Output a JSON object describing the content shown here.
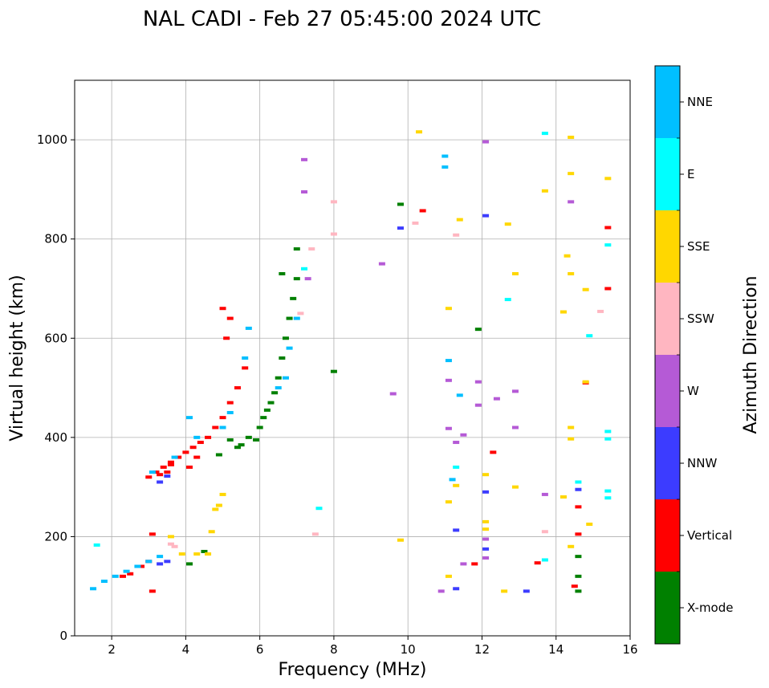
{
  "title": "NAL CADI - Feb 27 05:45:00 2024 UTC",
  "chart_data": {
    "type": "scatter",
    "title": "NAL CADI - Feb 27 05:45:00 2024 UTC",
    "xlabel": "Frequency (MHz)",
    "ylabel": "Virtual height (km)",
    "xlim": [
      1,
      16
    ],
    "ylim": [
      0,
      1120
    ],
    "xticks": [
      2,
      4,
      6,
      8,
      10,
      12,
      14,
      16
    ],
    "yticks": [
      0,
      200,
      400,
      600,
      800,
      1000
    ],
    "grid": true,
    "colorbar": {
      "label": "Azimuth Direction",
      "categories": [
        {
          "name": "X-mode",
          "color": "#008000"
        },
        {
          "name": "Vertical",
          "color": "#ff0000"
        },
        {
          "name": "NNW",
          "color": "#3c3cff"
        },
        {
          "name": "W",
          "color": "#b55ad6"
        },
        {
          "name": "SSW",
          "color": "#ffb6c1"
        },
        {
          "name": "SSE",
          "color": "#ffd700"
        },
        {
          "name": "E",
          "color": "#00ffff"
        },
        {
          "name": "NNE",
          "color": "#00bfff"
        }
      ]
    },
    "series": [
      {
        "name": "X-mode",
        "points": [
          [
            4.1,
            145
          ],
          [
            4.5,
            170
          ],
          [
            5.5,
            385
          ],
          [
            5.7,
            400
          ],
          [
            5.9,
            395
          ],
          [
            6.0,
            420
          ],
          [
            6.1,
            440
          ],
          [
            6.2,
            455
          ],
          [
            6.3,
            470
          ],
          [
            6.4,
            490
          ],
          [
            6.5,
            520
          ],
          [
            6.6,
            560
          ],
          [
            6.7,
            600
          ],
          [
            6.8,
            640
          ],
          [
            6.9,
            680
          ],
          [
            7.0,
            720
          ],
          [
            7.0,
            780
          ],
          [
            6.6,
            730
          ],
          [
            5.4,
            380
          ],
          [
            5.2,
            395
          ],
          [
            4.9,
            365
          ],
          [
            8.0,
            533
          ],
          [
            9.8,
            870
          ],
          [
            11.9,
            618
          ],
          [
            14.6,
            90
          ],
          [
            14.6,
            120
          ],
          [
            14.6,
            160
          ]
        ]
      },
      {
        "name": "Vertical",
        "points": [
          [
            3.0,
            320
          ],
          [
            3.2,
            330
          ],
          [
            3.4,
            340
          ],
          [
            3.6,
            350
          ],
          [
            3.8,
            360
          ],
          [
            4.0,
            370
          ],
          [
            4.2,
            380
          ],
          [
            4.4,
            390
          ],
          [
            4.6,
            400
          ],
          [
            4.8,
            420
          ],
          [
            5.0,
            440
          ],
          [
            5.2,
            470
          ],
          [
            5.4,
            500
          ],
          [
            5.6,
            540
          ],
          [
            5.1,
            600
          ],
          [
            5.2,
            640
          ],
          [
            5.0,
            660
          ],
          [
            3.5,
            330
          ],
          [
            3.3,
            325
          ],
          [
            3.6,
            345
          ],
          [
            4.1,
            340
          ],
          [
            4.3,
            360
          ],
          [
            3.1,
            205
          ],
          [
            3.1,
            90
          ],
          [
            2.5,
            125
          ],
          [
            2.8,
            140
          ],
          [
            3.0,
            150
          ],
          [
            2.3,
            120
          ],
          [
            10.4,
            857
          ],
          [
            12.3,
            370
          ],
          [
            13.5,
            147
          ],
          [
            14.5,
            100
          ],
          [
            14.8,
            510
          ],
          [
            15.4,
            700
          ],
          [
            15.4,
            823
          ],
          [
            14.6,
            205
          ],
          [
            14.6,
            260
          ],
          [
            11.8,
            145
          ]
        ]
      },
      {
        "name": "NNW",
        "points": [
          [
            3.3,
            310
          ],
          [
            3.5,
            322
          ],
          [
            3.3,
            145
          ],
          [
            3.5,
            150
          ],
          [
            9.8,
            822
          ],
          [
            11.3,
            213
          ],
          [
            12.1,
            847
          ],
          [
            12.1,
            290
          ],
          [
            13.2,
            90
          ],
          [
            12.1,
            175
          ],
          [
            11.3,
            95
          ],
          [
            14.6,
            295
          ]
        ]
      },
      {
        "name": "W",
        "points": [
          [
            7.2,
            895
          ],
          [
            7.2,
            960
          ],
          [
            7.3,
            720
          ],
          [
            9.3,
            750
          ],
          [
            9.6,
            488
          ],
          [
            11.1,
            418
          ],
          [
            11.1,
            515
          ],
          [
            11.9,
            512
          ],
          [
            11.9,
            465
          ],
          [
            12.4,
            478
          ],
          [
            12.9,
            493
          ],
          [
            12.9,
            420
          ],
          [
            13.7,
            285
          ],
          [
            11.3,
            390
          ],
          [
            11.5,
            405
          ],
          [
            12.1,
            195
          ],
          [
            12.1,
            157
          ],
          [
            10.9,
            90
          ],
          [
            11.5,
            145
          ],
          [
            12.1,
            996
          ],
          [
            14.4,
            875
          ]
        ]
      },
      {
        "name": "SSW",
        "points": [
          [
            3.7,
            180
          ],
          [
            3.6,
            185
          ],
          [
            7.5,
            205
          ],
          [
            8.0,
            875
          ],
          [
            8.0,
            810
          ],
          [
            10.2,
            832
          ],
          [
            11.3,
            808
          ],
          [
            13.7,
            210
          ],
          [
            15.2,
            654
          ],
          [
            7.4,
            780
          ],
          [
            7.1,
            650
          ]
        ]
      },
      {
        "name": "SSE",
        "points": [
          [
            3.6,
            200
          ],
          [
            3.9,
            165
          ],
          [
            4.3,
            165
          ],
          [
            4.6,
            165
          ],
          [
            4.7,
            210
          ],
          [
            4.8,
            255
          ],
          [
            4.9,
            263
          ],
          [
            5.0,
            285
          ],
          [
            9.8,
            193
          ],
          [
            10.3,
            1016
          ],
          [
            11.1,
            660
          ],
          [
            11.1,
            270
          ],
          [
            11.3,
            303
          ],
          [
            11.4,
            839
          ],
          [
            12.1,
            325
          ],
          [
            12.1,
            230
          ],
          [
            12.1,
            215
          ],
          [
            12.7,
            830
          ],
          [
            12.6,
            90
          ],
          [
            12.9,
            300
          ],
          [
            12.9,
            730
          ],
          [
            13.7,
            897
          ],
          [
            14.2,
            653
          ],
          [
            14.3,
            766
          ],
          [
            14.4,
            1005
          ],
          [
            14.4,
            932
          ],
          [
            14.4,
            730
          ],
          [
            14.4,
            420
          ],
          [
            14.4,
            397
          ],
          [
            14.4,
            180
          ],
          [
            14.8,
            698
          ],
          [
            14.8,
            512
          ],
          [
            15.4,
            922
          ],
          [
            14.2,
            280
          ],
          [
            11.1,
            120
          ],
          [
            14.9,
            225
          ]
        ]
      },
      {
        "name": "E",
        "points": [
          [
            1.6,
            183
          ],
          [
            7.6,
            257
          ],
          [
            7.2,
            740
          ],
          [
            12.7,
            678
          ],
          [
            13.7,
            1013
          ],
          [
            13.7,
            153
          ],
          [
            14.6,
            310
          ],
          [
            14.9,
            605
          ],
          [
            15.4,
            788
          ],
          [
            15.4,
            412
          ],
          [
            15.4,
            397
          ],
          [
            15.4,
            292
          ],
          [
            15.4,
            278
          ],
          [
            11.3,
            340
          ]
        ]
      },
      {
        "name": "NNE",
        "points": [
          [
            1.5,
            95
          ],
          [
            1.8,
            110
          ],
          [
            2.1,
            120
          ],
          [
            2.4,
            130
          ],
          [
            2.7,
            140
          ],
          [
            3.0,
            150
          ],
          [
            3.3,
            160
          ],
          [
            3.1,
            330
          ],
          [
            3.7,
            360
          ],
          [
            4.1,
            440
          ],
          [
            4.3,
            400
          ],
          [
            5.0,
            420
          ],
          [
            5.2,
            450
          ],
          [
            5.6,
            560
          ],
          [
            5.7,
            620
          ],
          [
            6.5,
            500
          ],
          [
            6.7,
            520
          ],
          [
            6.8,
            580
          ],
          [
            7.0,
            640
          ],
          [
            11.0,
            967
          ],
          [
            11.0,
            945
          ],
          [
            11.2,
            315
          ],
          [
            11.1,
            555
          ],
          [
            11.4,
            485
          ]
        ]
      }
    ]
  }
}
